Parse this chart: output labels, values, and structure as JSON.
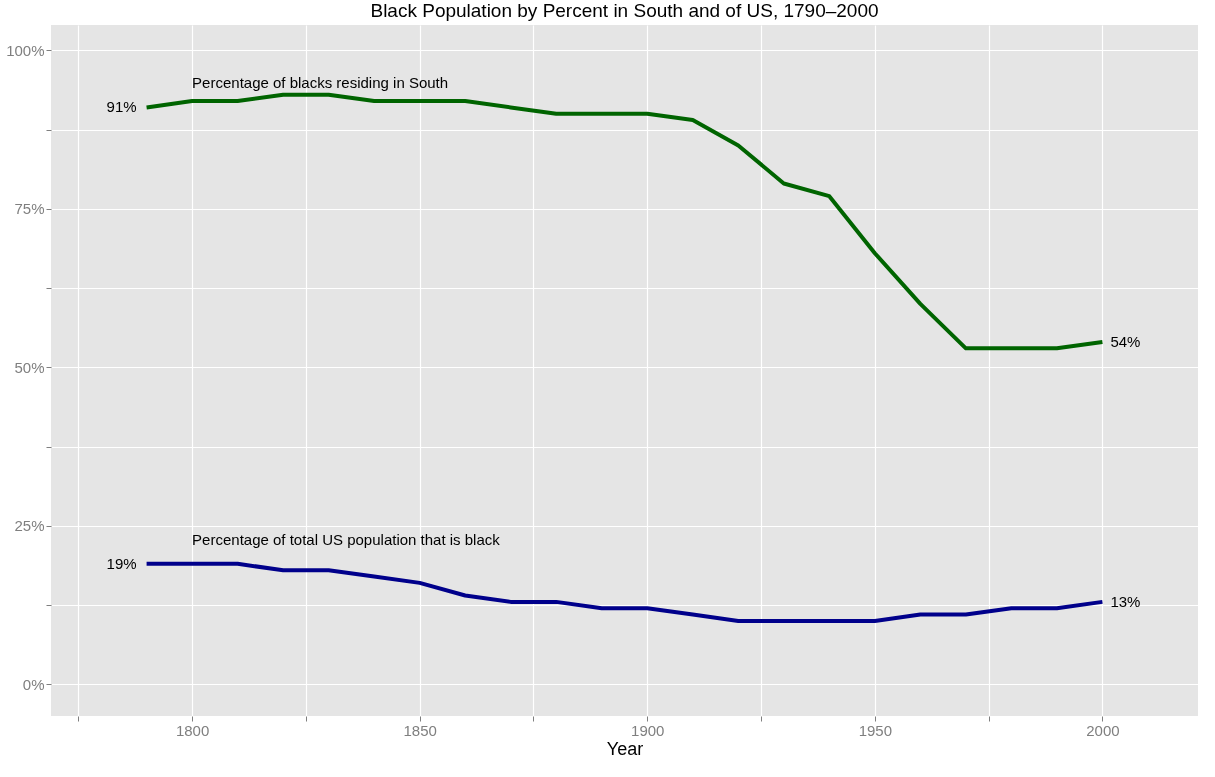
{
  "chart_data": {
    "type": "line",
    "title": "Black Population by Percent in South and of US, 1790–2000",
    "xlabel": "Year",
    "x": [
      1790,
      1800,
      1810,
      1820,
      1830,
      1840,
      1850,
      1860,
      1870,
      1880,
      1890,
      1900,
      1910,
      1920,
      1930,
      1940,
      1950,
      1960,
      1970,
      1980,
      1990,
      2000
    ],
    "series": [
      {
        "name": "Percentage of blacks residing in South",
        "color": "#006400",
        "values": [
          91,
          92,
          92,
          93,
          93,
          92,
          92,
          92,
          91,
          90,
          90,
          90,
          89,
          85,
          79,
          77,
          68,
          60,
          53,
          53,
          53,
          54
        ],
        "value_labels": [
          "91%",
          null,
          null,
          null,
          null,
          null,
          null,
          null,
          null,
          null,
          null,
          null,
          null,
          null,
          null,
          null,
          null,
          null,
          null,
          null,
          null,
          "54%"
        ]
      },
      {
        "name": "Percentage of total US population that is black",
        "color": "#00008b",
        "values": [
          19,
          19,
          19,
          18,
          18,
          17,
          16,
          14,
          13,
          13,
          12,
          12,
          11,
          10,
          10,
          10,
          10,
          11,
          11,
          12,
          12,
          13
        ],
        "value_labels": [
          "19%",
          null,
          null,
          null,
          null,
          null,
          null,
          null,
          null,
          null,
          null,
          null,
          null,
          null,
          null,
          null,
          null,
          null,
          null,
          null,
          null,
          "13%"
        ]
      }
    ],
    "xlim": [
      1769,
      2021
    ],
    "ylim": [
      -5,
      104
    ],
    "xticks": [
      {
        "value": 1775,
        "label": null
      },
      1800,
      {
        "value": 1825,
        "label": null
      },
      1850,
      {
        "value": 1875,
        "label": null
      },
      1900,
      {
        "value": 1925,
        "label": null
      },
      1950,
      {
        "value": 1975,
        "label": null
      },
      2000
    ],
    "yticks": [
      {
        "value": 0,
        "label": "0%"
      },
      {
        "value": 12.5,
        "label": null
      },
      {
        "value": 25,
        "label": "25%"
      },
      {
        "value": 37.5,
        "label": null
      },
      {
        "value": 50,
        "label": "50%"
      },
      {
        "value": 62.5,
        "label": null
      },
      {
        "value": 75,
        "label": "75%"
      },
      {
        "value": 87.5,
        "label": null
      },
      {
        "value": 100,
        "label": "100%"
      }
    ],
    "grid": true,
    "marker": "none",
    "line_style": "solid"
  }
}
